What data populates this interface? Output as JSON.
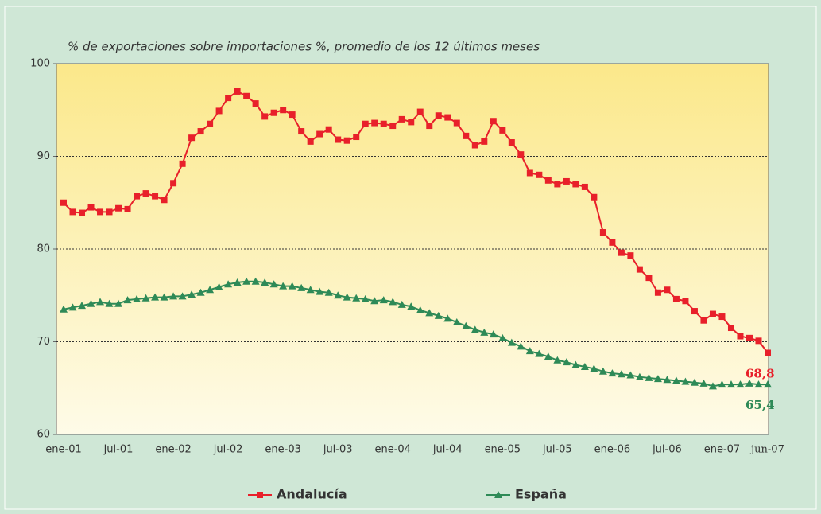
{
  "chart_data": {
    "type": "line",
    "title": "% de exportaciones sobre importaciones %, promedio de los 12 últimos meses",
    "categories": [
      "ene-01",
      null,
      null,
      null,
      null,
      null,
      "jul-01",
      null,
      null,
      null,
      null,
      null,
      "ene-02",
      null,
      null,
      null,
      null,
      null,
      "jul-02",
      null,
      null,
      null,
      null,
      null,
      "ene-03",
      null,
      null,
      null,
      null,
      null,
      "jul-03",
      null,
      null,
      null,
      null,
      null,
      "ene-04",
      null,
      null,
      null,
      null,
      null,
      "jul-04",
      null,
      null,
      null,
      null,
      null,
      "ene-05",
      null,
      null,
      null,
      null,
      null,
      "jul-05",
      null,
      null,
      null,
      null,
      null,
      "ene-06",
      null,
      null,
      null,
      null,
      null,
      "jul-06",
      null,
      null,
      null,
      null,
      null,
      "ene-07",
      null,
      null,
      null,
      null,
      "jun-07"
    ],
    "series": [
      {
        "name": "Andalucía",
        "color": "#e8202a",
        "marker": "square",
        "values": [
          85.0,
          84.0,
          83.9,
          84.5,
          84.0,
          84.0,
          84.4,
          84.3,
          85.7,
          86.0,
          85.7,
          85.3,
          87.1,
          89.2,
          92.0,
          92.7,
          93.5,
          94.9,
          96.3,
          97.0,
          96.5,
          95.7,
          94.3,
          94.7,
          95.0,
          94.5,
          92.7,
          91.6,
          92.4,
          92.9,
          91.8,
          91.7,
          92.1,
          93.5,
          93.6,
          93.5,
          93.3,
          94.0,
          93.7,
          94.8,
          93.3,
          94.4,
          94.2,
          93.6,
          92.2,
          91.2,
          91.6,
          93.8,
          92.8,
          91.5,
          90.2,
          88.2,
          88.0,
          87.4,
          87.0,
          87.3,
          87.0,
          86.7,
          85.6,
          81.8,
          80.7,
          79.6,
          79.3,
          77.8,
          76.9,
          75.3,
          75.6,
          74.6,
          74.4,
          73.3,
          72.3,
          73.0,
          72.7,
          71.5,
          70.6,
          70.4,
          70.1,
          68.8
        ],
        "value_labels": [
          null,
          null,
          null,
          null,
          null,
          null,
          null,
          null,
          null,
          null,
          null,
          null,
          null,
          null,
          null,
          null,
          null,
          null,
          null,
          null,
          null,
          null,
          null,
          null,
          null,
          null,
          null,
          null,
          null,
          null,
          null,
          null,
          null,
          null,
          null,
          null,
          null,
          null,
          null,
          null,
          null,
          null,
          null,
          null,
          null,
          null,
          null,
          null,
          null,
          null,
          null,
          null,
          null,
          null,
          null,
          null,
          null,
          null,
          null,
          null,
          null,
          null,
          null,
          null,
          null,
          null,
          null,
          null,
          null,
          null,
          null,
          null,
          null,
          null,
          null,
          null,
          null,
          "68,8"
        ]
      },
      {
        "name": "España",
        "color": "#2e8a57",
        "marker": "triangle",
        "values": [
          73.5,
          73.7,
          73.9,
          74.1,
          74.3,
          74.1,
          74.1,
          74.5,
          74.6,
          74.7,
          74.8,
          74.8,
          74.9,
          74.9,
          75.1,
          75.3,
          75.6,
          75.9,
          76.2,
          76.4,
          76.5,
          76.5,
          76.4,
          76.2,
          76.0,
          76.0,
          75.8,
          75.6,
          75.4,
          75.3,
          75.0,
          74.8,
          74.7,
          74.6,
          74.4,
          74.5,
          74.3,
          74.0,
          73.8,
          73.4,
          73.1,
          72.8,
          72.5,
          72.1,
          71.7,
          71.3,
          71.0,
          70.8,
          70.4,
          69.9,
          69.5,
          69.0,
          68.7,
          68.4,
          68.0,
          67.8,
          67.5,
          67.3,
          67.1,
          66.8,
          66.6,
          66.5,
          66.4,
          66.2,
          66.1,
          66.0,
          65.9,
          65.8,
          65.7,
          65.6,
          65.5,
          65.2,
          65.4,
          65.4,
          65.4,
          65.5,
          65.4,
          65.4
        ],
        "value_labels": [
          null,
          null,
          null,
          null,
          null,
          null,
          null,
          null,
          null,
          null,
          null,
          null,
          null,
          null,
          null,
          null,
          null,
          null,
          null,
          null,
          null,
          null,
          null,
          null,
          null,
          null,
          null,
          null,
          null,
          null,
          null,
          null,
          null,
          null,
          null,
          null,
          null,
          null,
          null,
          null,
          null,
          null,
          null,
          null,
          null,
          null,
          null,
          null,
          null,
          null,
          null,
          null,
          null,
          null,
          null,
          null,
          null,
          null,
          null,
          null,
          null,
          null,
          null,
          null,
          null,
          null,
          null,
          null,
          null,
          null,
          null,
          null,
          null,
          null,
          null,
          null,
          null,
          "65,4"
        ]
      }
    ],
    "ylim": [
      60,
      100
    ],
    "yticks": [
      60,
      70,
      80,
      90,
      100
    ],
    "grid": true,
    "legend": "bottom"
  }
}
